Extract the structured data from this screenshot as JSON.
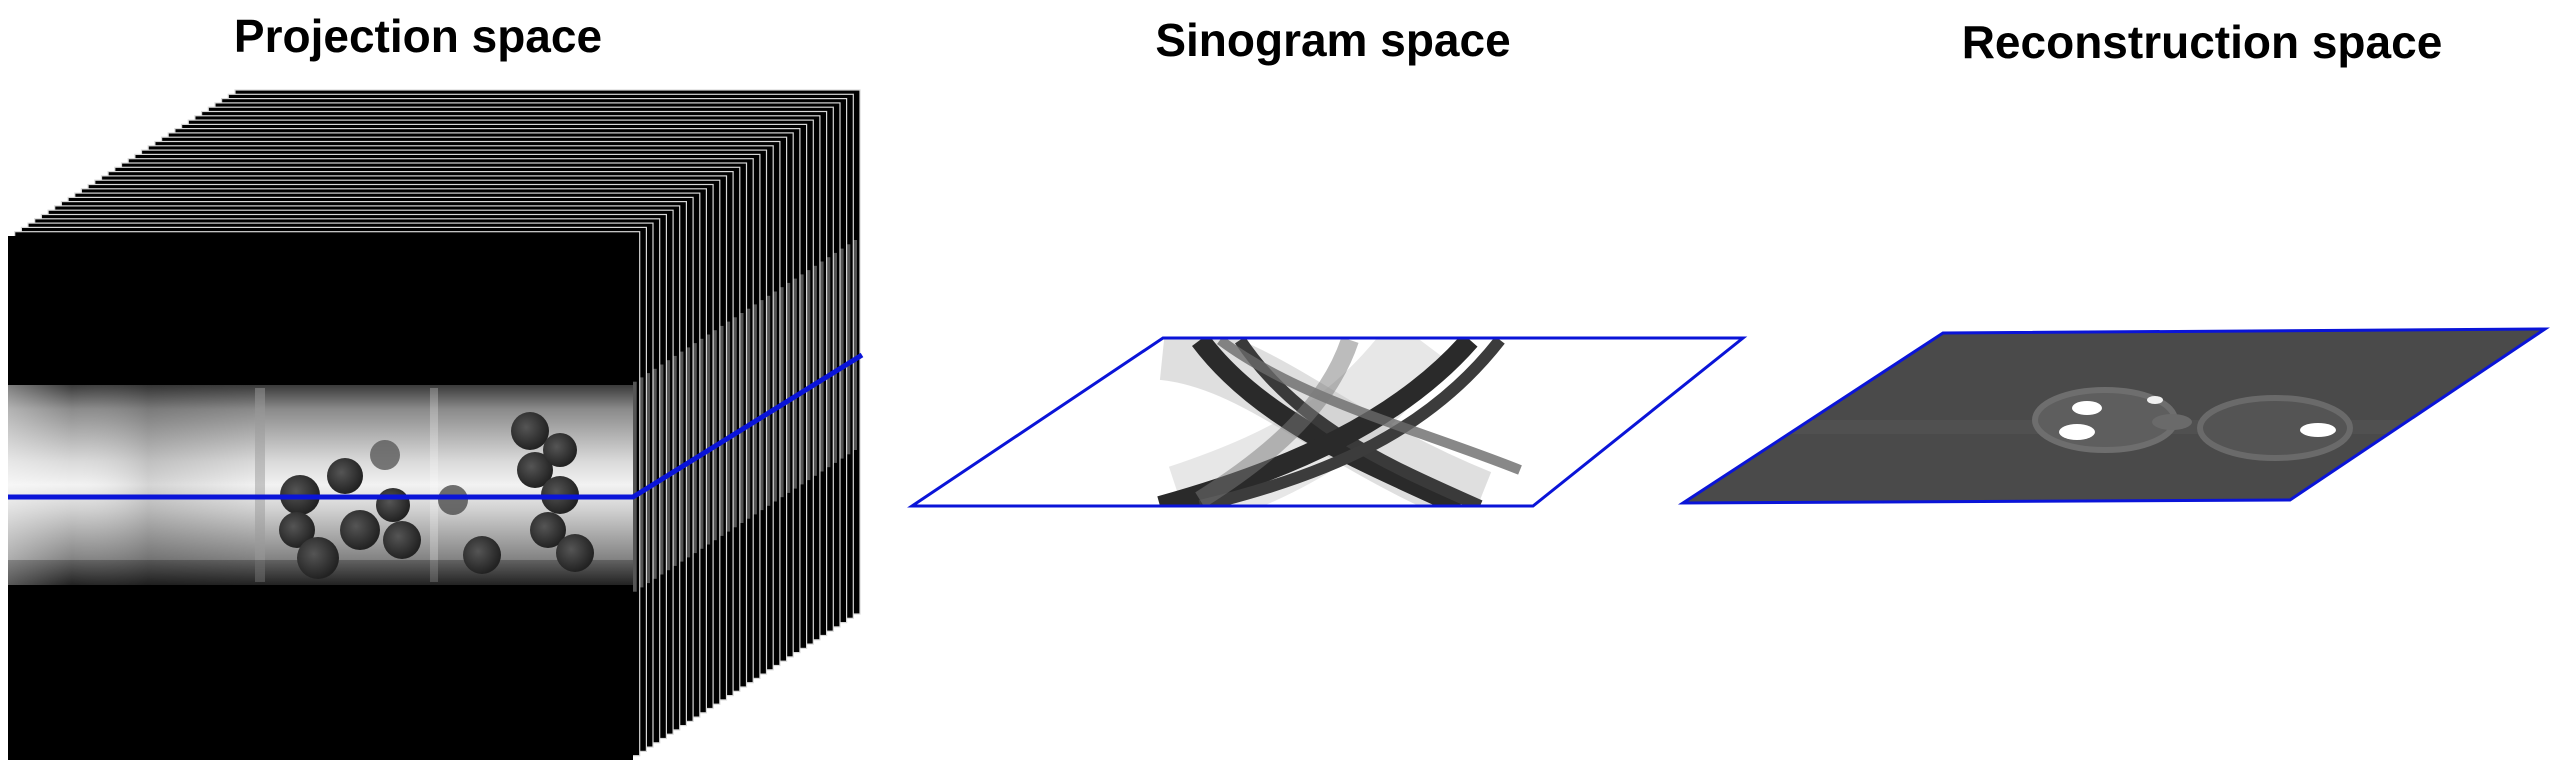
{
  "titles": {
    "projection": "Projection space",
    "sinogram": "Sinogram space",
    "reconstruction": "Reconstruction space"
  },
  "colors": {
    "background": "#ffffff",
    "slice_line": "#0a14d8",
    "detector_black": "#000000",
    "tube_glow": "#e8e8e8",
    "sphere": "#2e2e2e",
    "sinogram_band": "#2a2a2a",
    "reconstruction_background": "#4a4a4a",
    "reconstruction_highlight": "#ffffff"
  }
}
